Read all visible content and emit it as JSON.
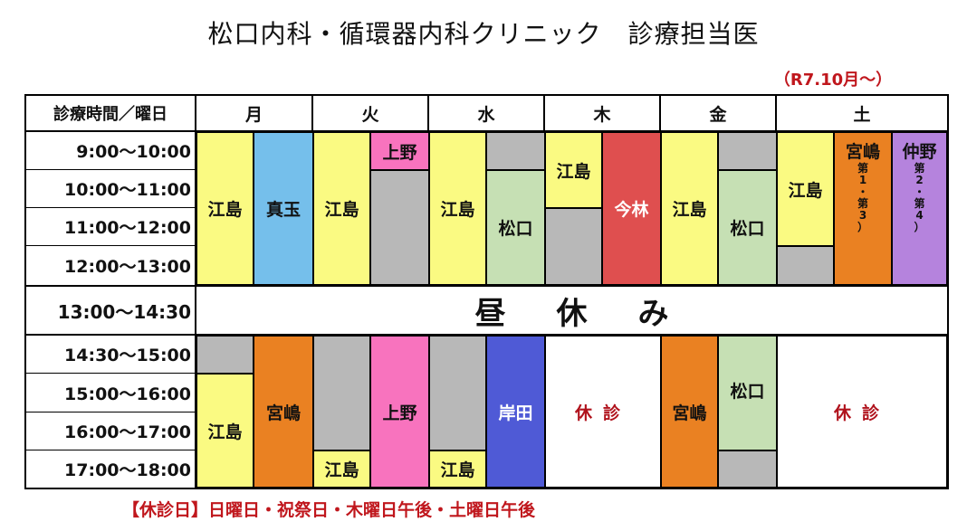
{
  "title": "松口内科・循環器内科クリニック　診療担当医",
  "effective": "（R7.10月～）",
  "header": {
    "corner": "診療時間／曜日",
    "days": [
      "月",
      "火",
      "水",
      "木",
      "金",
      "土"
    ]
  },
  "times": {
    "morning": [
      "9:00～10:00",
      "10:00～11:00",
      "11:00～12:00",
      "12:00～13:00"
    ],
    "lunch": "13:00～14:30",
    "afternoon": [
      "14:30～15:00",
      "15:00～16:00",
      "16:00～17:00",
      "17:00～18:00"
    ]
  },
  "lunch_label": [
    "昼",
    "休",
    "み"
  ],
  "closed_label": "休診",
  "doctors": {
    "mon_am_1": "江島",
    "mon_am_2": "真玉",
    "tue_am_1": "江島",
    "tue_am_2": "上野",
    "wed_am_1": "江島",
    "wed_am_2": "松口",
    "thu_am_1": "江島",
    "thu_am_2": "今林",
    "fri_am_1": "江島",
    "fri_am_2": "松口",
    "sat_am_1": "江島",
    "sat_am_2": "宮嶋",
    "sat_am_3": "仲野",
    "mon_pm_1": "江島",
    "mon_pm_2": "宮嶋",
    "tue_pm_1": "江島",
    "tue_pm_2": "上野",
    "wed_pm_1": "江島",
    "wed_pm_2": "岸田",
    "fri_pm_1": "宮嶋",
    "fri_pm_2": "松口"
  },
  "sat_notes": {
    "miyajima": [
      "第",
      "1",
      "・",
      "第",
      "3",
      "）"
    ],
    "nakano": [
      "第",
      "2",
      "・",
      "第",
      "4",
      "）"
    ]
  },
  "note": "【休診日】日曜日・祝祭日・木曜日午後・土曜日午後",
  "colors": {
    "yellow": "#fafa82",
    "blue": "#75bfeb",
    "pink": "#f873be",
    "grey": "#b8b8b8",
    "green": "#c6e0b4",
    "red": "#df4f4f",
    "orange": "#ea8122",
    "purple": "#b583dd",
    "indigo": "#4f5ad6"
  }
}
